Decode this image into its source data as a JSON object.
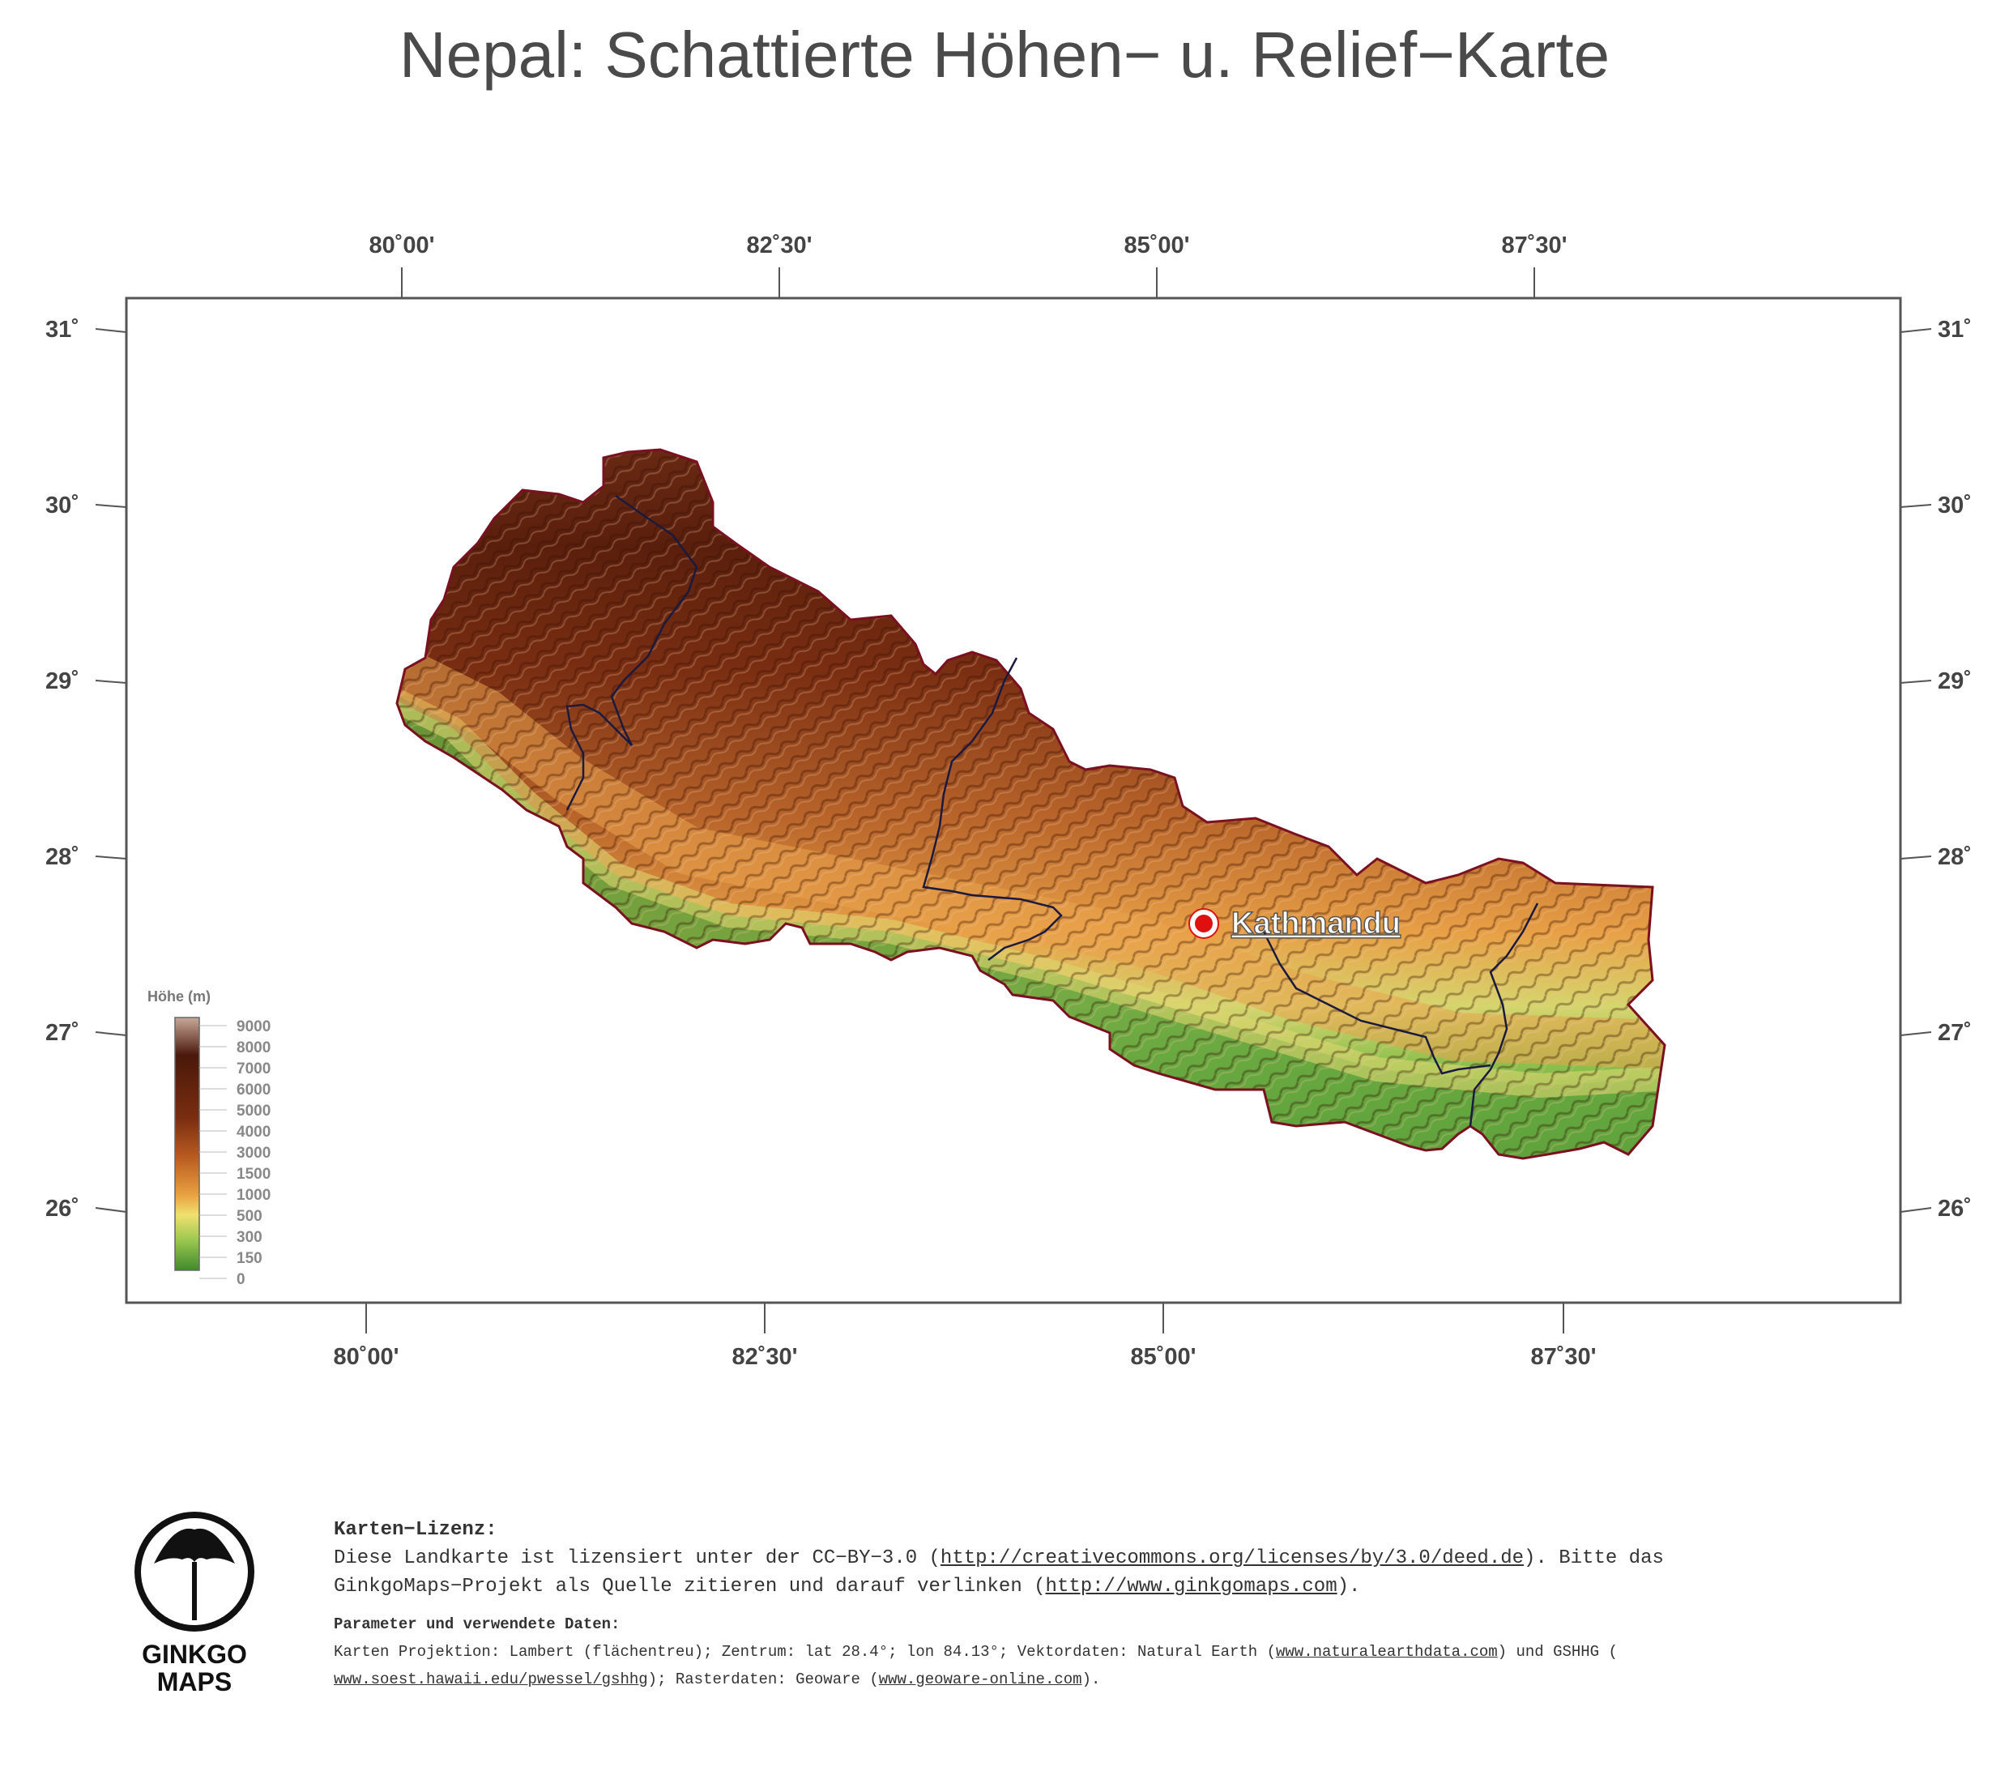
{
  "title": "Nepal: Schattierte Höhen− u. Relief−Karte",
  "axes": {
    "lon_labels": [
      "80˚00'",
      "82˚30'",
      "85˚00'",
      "87˚30'"
    ],
    "lat_labels": [
      "31˚",
      "30˚",
      "29˚",
      "28˚",
      "27˚",
      "26˚"
    ]
  },
  "legend": {
    "title": "Höhe  (m)",
    "levels": [
      "9000",
      "8000",
      "7000",
      "6000",
      "5000",
      "4000",
      "3000",
      "1500",
      "1000",
      "500",
      "300",
      "150",
      "0"
    ]
  },
  "places": [
    {
      "name": "Kathmandu",
      "type": "capital"
    }
  ],
  "colors": {
    "lowland": "#5a9e3a",
    "plain": "#b8d36a",
    "mid": "#e2a24a",
    "high": "#7a2e12",
    "peak": "#d8b8a8",
    "border": "#7a1020",
    "capital": "#e01010"
  },
  "license": {
    "heading": "Karten−Lizenz:",
    "line1_prefix": "Diese Landkarte ist lizensiert unter der CC−BY−3.0 (",
    "line1_link": "http://creativecommons.org/licenses/by/3.0/deed.de",
    "line1_suffix": ").  Bitte das",
    "line2_prefix": "GinkgoMaps−Projekt als Quelle zitieren und darauf verlinken (",
    "line2_link": "http://www.ginkgomaps.com",
    "line2_suffix": ").",
    "params_heading": "Parameter und verwendete Daten:",
    "params_line1_prefix": "Karten Projektion: Lambert (flächentreu); Zentrum: lat 28.4°; lon 84.13°; Vektordaten: Natural Earth (",
    "params_link1": "www.naturalearthdata.com",
    "params_line1_suffix": ") und GSHHG (",
    "params_link2": "www.soest.hawaii.edu/pwessel/gshhg",
    "params_line2_mid": "); Rasterdaten: Geoware (",
    "params_link3": "www.geoware-online.com",
    "params_line2_suffix": ")."
  },
  "logo": {
    "line1": "GINKGO",
    "line2": "MAPS"
  }
}
